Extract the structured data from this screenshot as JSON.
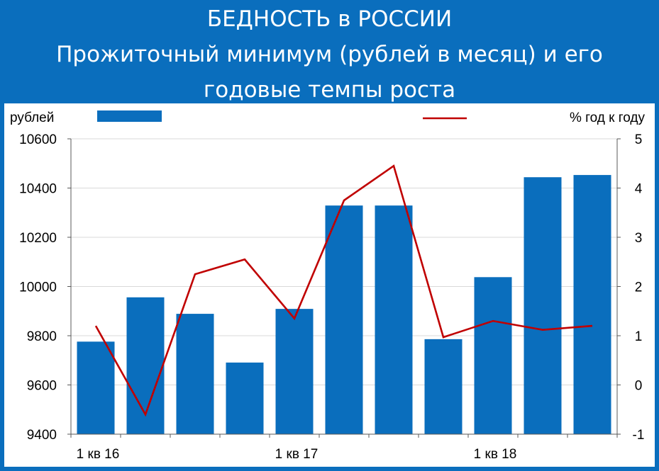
{
  "header": {
    "title_line1": "БЕДНОСТЬ в РОССИИ",
    "title_line2": "Прожиточный минимум (рублей в месяц) и его",
    "title_line3": "годовые темпы роста"
  },
  "colors": {
    "background": "#0a6ebd",
    "bar": "#0a6ebd",
    "line": "#c00000",
    "grid": "#d9d9d9"
  },
  "chart_data": {
    "type": "bar",
    "categories": [
      "1 кв 16",
      "",
      "",
      "",
      "1 кв 17",
      "",
      "",
      "",
      "1 кв 18",
      "",
      ""
    ],
    "series": [
      {
        "type": "bar",
        "axis": "left",
        "values": [
          9776,
          9956,
          9889,
          9691,
          9909,
          10329,
          10329,
          9786,
          10038,
          10444,
          10453
        ]
      },
      {
        "type": "line",
        "axis": "right",
        "values": [
          1.2,
          -0.6,
          2.25,
          2.55,
          1.35,
          3.75,
          4.45,
          0.97,
          1.3,
          1.12,
          1.2
        ]
      }
    ],
    "y_left": {
      "label": "рублей",
      "range": [
        9400,
        10600
      ],
      "ticks": [
        9400,
        9600,
        9800,
        10000,
        10200,
        10400,
        10600
      ]
    },
    "y_right": {
      "label": "%  год к году",
      "range": [
        -1,
        5
      ],
      "ticks": [
        -1,
        0,
        1,
        2,
        3,
        4,
        5
      ]
    },
    "x_tick_labels": [
      {
        "index": 0,
        "label": "1 кв 16"
      },
      {
        "index": 4,
        "label": "1 кв 17"
      },
      {
        "index": 8,
        "label": "1 кв 18"
      }
    ],
    "grid": true,
    "legend_placement": "top"
  }
}
